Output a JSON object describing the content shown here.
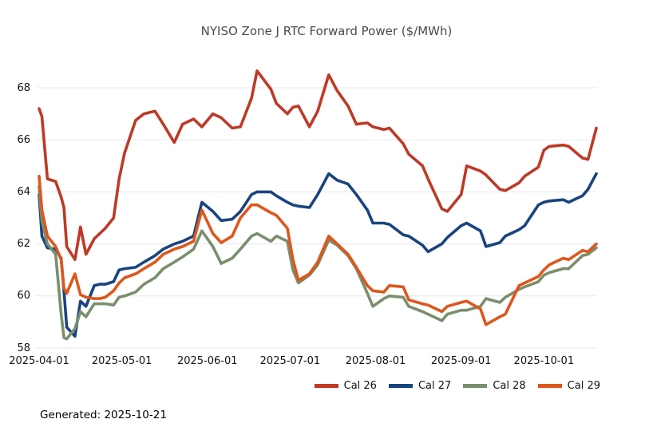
{
  "footer": {
    "generated": "Generated: 2025-10-21"
  },
  "chart_data": {
    "type": "line",
    "title": "NYISO Zone J RTC Forward Power ($/MWh)",
    "xlabel": "",
    "ylabel": "",
    "ylim": [
      58,
      68
    ],
    "yticks": [
      58,
      60,
      62,
      64,
      66,
      68
    ],
    "x_ticks": [
      "2025-04-01",
      "2025-05-01",
      "2025-06-01",
      "2025-07-01",
      "2025-08-01",
      "2025-09-01",
      "2025-10-01"
    ],
    "grid": "horizontal",
    "legend_position": "bottom-right",
    "grid_color": "#e8e8e8",
    "x": [
      "2025-04-01",
      "2025-04-02",
      "2025-04-04",
      "2025-04-07",
      "2025-04-09",
      "2025-04-10",
      "2025-04-11",
      "2025-04-14",
      "2025-04-16",
      "2025-04-18",
      "2025-04-21",
      "2025-04-23",
      "2025-04-25",
      "2025-04-28",
      "2025-04-30",
      "2025-05-02",
      "2025-05-06",
      "2025-05-09",
      "2025-05-13",
      "2025-05-16",
      "2025-05-20",
      "2025-05-23",
      "2025-05-27",
      "2025-05-30",
      "2025-06-03",
      "2025-06-06",
      "2025-06-10",
      "2025-06-13",
      "2025-06-17",
      "2025-06-19",
      "2025-06-24",
      "2025-06-26",
      "2025-06-30",
      "2025-07-02",
      "2025-07-04",
      "2025-07-08",
      "2025-07-11",
      "2025-07-15",
      "2025-07-18",
      "2025-07-22",
      "2025-07-25",
      "2025-07-29",
      "2025-07-31",
      "2025-08-04",
      "2025-08-06",
      "2025-08-11",
      "2025-08-13",
      "2025-08-18",
      "2025-08-20",
      "2025-08-25",
      "2025-08-27",
      "2025-09-01",
      "2025-09-03",
      "2025-09-08",
      "2025-09-10",
      "2025-09-15",
      "2025-09-17",
      "2025-09-22",
      "2025-09-24",
      "2025-09-29",
      "2025-10-01",
      "2025-10-03",
      "2025-10-08",
      "2025-10-10",
      "2025-10-15",
      "2025-10-17",
      "2025-10-20"
    ],
    "series": [
      {
        "name": "Cal 26",
        "color": "#bd3a26",
        "values": [
          67.2,
          66.9,
          64.5,
          64.4,
          63.8,
          63.4,
          61.9,
          61.4,
          62.65,
          61.6,
          62.2,
          62.4,
          62.6,
          63.0,
          64.5,
          65.5,
          66.75,
          67.0,
          67.1,
          66.6,
          65.9,
          66.6,
          66.8,
          66.5,
          67.0,
          66.85,
          66.45,
          66.5,
          67.6,
          68.65,
          67.95,
          67.4,
          67.0,
          67.25,
          67.3,
          66.5,
          67.1,
          68.5,
          67.9,
          67.3,
          66.6,
          66.65,
          66.5,
          66.4,
          66.45,
          65.85,
          65.45,
          65.0,
          64.5,
          63.35,
          63.25,
          63.9,
          65.0,
          64.8,
          64.65,
          64.1,
          64.05,
          64.35,
          64.6,
          64.95,
          65.6,
          65.75,
          65.8,
          65.75,
          65.3,
          65.25,
          66.45
        ]
      },
      {
        "name": "Cal 27",
        "color": "#1a4480",
        "values": [
          63.9,
          62.3,
          61.85,
          61.8,
          61.45,
          60.2,
          58.8,
          58.45,
          59.8,
          59.6,
          60.4,
          60.45,
          60.45,
          60.55,
          61.0,
          61.05,
          61.1,
          61.3,
          61.55,
          61.8,
          62.0,
          62.1,
          62.3,
          63.6,
          63.25,
          62.9,
          62.95,
          63.25,
          63.9,
          64.0,
          64.0,
          63.85,
          63.6,
          63.5,
          63.45,
          63.4,
          63.9,
          64.7,
          64.45,
          64.3,
          63.9,
          63.3,
          62.8,
          62.8,
          62.75,
          62.35,
          62.3,
          61.95,
          61.7,
          62.0,
          62.25,
          62.7,
          62.8,
          62.5,
          61.9,
          62.05,
          62.3,
          62.55,
          62.7,
          63.5,
          63.6,
          63.65,
          63.7,
          63.6,
          63.85,
          64.1,
          64.7
        ]
      },
      {
        "name": "Cal 28",
        "color": "#7a8f6d",
        "values": [
          64.2,
          62.9,
          62.0,
          61.6,
          59.3,
          58.4,
          58.35,
          58.75,
          59.4,
          59.2,
          59.7,
          59.7,
          59.7,
          59.65,
          59.95,
          60.0,
          60.15,
          60.45,
          60.7,
          61.05,
          61.3,
          61.5,
          61.8,
          62.5,
          61.9,
          61.25,
          61.45,
          61.8,
          62.3,
          62.4,
          62.1,
          62.3,
          62.1,
          61.0,
          60.5,
          60.8,
          61.2,
          62.15,
          61.95,
          61.55,
          61.05,
          60.1,
          59.6,
          59.9,
          60.0,
          59.95,
          59.6,
          59.4,
          59.3,
          59.05,
          59.3,
          59.45,
          59.45,
          59.6,
          59.9,
          59.75,
          59.95,
          60.25,
          60.35,
          60.55,
          60.8,
          60.9,
          61.05,
          61.05,
          61.55,
          61.6,
          61.85
        ]
      },
      {
        "name": "Cal 29",
        "color": "#dd571c",
        "values": [
          64.6,
          63.3,
          62.3,
          61.9,
          61.4,
          60.3,
          60.1,
          60.85,
          60.05,
          59.95,
          59.9,
          59.9,
          59.95,
          60.2,
          60.5,
          60.7,
          60.85,
          61.05,
          61.3,
          61.6,
          61.8,
          61.9,
          62.1,
          63.3,
          62.4,
          62.05,
          62.3,
          63.0,
          63.5,
          63.5,
          63.2,
          63.1,
          62.6,
          61.4,
          60.6,
          60.85,
          61.3,
          62.3,
          62.0,
          61.6,
          61.1,
          60.4,
          60.2,
          60.15,
          60.4,
          60.35,
          59.85,
          59.7,
          59.65,
          59.4,
          59.6,
          59.75,
          59.8,
          59.5,
          58.9,
          59.2,
          59.3,
          60.4,
          60.5,
          60.75,
          61.0,
          61.2,
          61.45,
          61.4,
          61.75,
          61.7,
          62.0
        ]
      }
    ]
  }
}
